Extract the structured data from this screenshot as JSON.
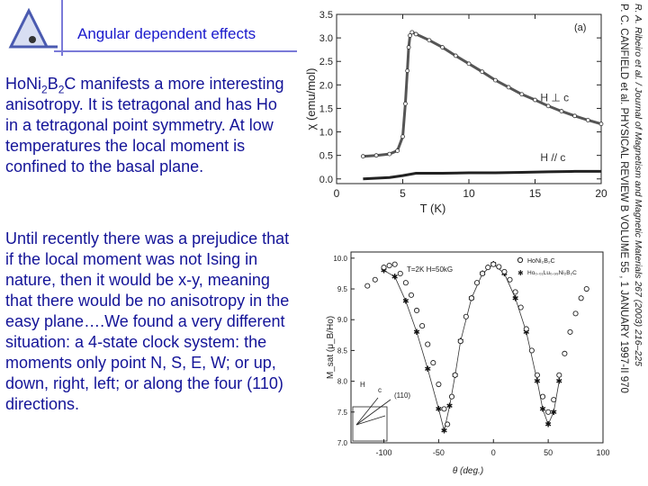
{
  "slide": {
    "title": "Angular dependent effects",
    "para1": {
      "formula": [
        "Ho",
        "Ni",
        "2",
        "B",
        "2",
        "C"
      ],
      "text": " manifests a more interesting anisotropy.  It is tetragonal and has Ho in a tetragonal point symmetry.  At low temperatures the local moment is confined to the basal plane."
    },
    "para2": "Until recently there was a prejudice that if the local moment was not Ising in nature, then it would be x-y, meaning that there would be no anisotropy in the easy plane….We found a very different situation:  a 4-state clock system:  the moments only point N, S, E, W; or up, down, right, left; or along the four (110) directions.",
    "citation1": "P. C. CANFIELD et al.   PHYSICAL REVIEW B VOLUME 55 , 1 JANUARY 1997-II    970",
    "citation2": "R. A. Ribeiro et al. / Journal of Magnetism and Magnetic Materials 267 (2003) 216–225",
    "colors": {
      "text": "#141498",
      "title": "#1a1acc",
      "rule": "#7a7ad8"
    }
  },
  "chart_data": [
    {
      "type": "line",
      "panel": "(a)",
      "xlabel": "T (K)",
      "ylabel": "χ (emu/mol)",
      "xlim": [
        0,
        20
      ],
      "ylim": [
        -0.1,
        3.5
      ],
      "xticks": [
        "0",
        "5",
        "10",
        "15",
        "20"
      ],
      "yticks": [
        "0.0",
        "0.5",
        "1.0",
        "1.5",
        "2.0",
        "2.5",
        "3.0",
        "3.5"
      ],
      "series": [
        {
          "name": "H ⊥ c",
          "x": [
            2.0,
            3.0,
            4.0,
            4.6,
            5.0,
            5.2,
            5.35,
            5.45,
            5.55,
            5.7,
            6.0,
            7.0,
            8.0,
            9.0,
            10.0,
            11.0,
            12.0,
            13.0,
            14.0,
            15.0,
            16.0,
            17.0,
            18.0,
            19.0,
            20.0
          ],
          "y": [
            0.48,
            0.5,
            0.53,
            0.6,
            0.9,
            1.6,
            2.3,
            2.8,
            3.05,
            3.12,
            3.08,
            2.95,
            2.8,
            2.62,
            2.45,
            2.28,
            2.1,
            1.95,
            1.8,
            1.68,
            1.55,
            1.44,
            1.34,
            1.25,
            1.17
          ]
        },
        {
          "name": "H // c",
          "x": [
            2.0,
            4.0,
            5.0,
            6.0,
            8.0,
            10.0,
            12.0,
            14.0,
            16.0,
            18.0,
            20.0
          ],
          "y": [
            0.0,
            0.03,
            0.07,
            0.12,
            0.12,
            0.13,
            0.13,
            0.14,
            0.15,
            0.16,
            0.16
          ]
        }
      ]
    },
    {
      "type": "scatter",
      "xlabel": "θ (deg.)",
      "ylabel": "M_sat (μ_B/Ho)",
      "annotation": "T=2K  H=50kG",
      "xlim": [
        -130,
        100
      ],
      "ylim": [
        7.0,
        10.1
      ],
      "xticks": [
        "-100",
        "-50",
        "0",
        "50",
        "100"
      ],
      "yticks": [
        "7.0",
        "7.5",
        "8.0",
        "8.5",
        "9.0",
        "9.5",
        "10.0"
      ],
      "inset": {
        "labels": [
          "H",
          "c",
          "(110)"
        ]
      },
      "series": [
        {
          "name": "HoNi₂B₂C",
          "x": [
            -115,
            -108,
            -100,
            -95,
            -90,
            -85,
            -80,
            -75,
            -70,
            -65,
            -60,
            -55,
            -50,
            -45,
            -42,
            -38,
            -35,
            -30,
            -25,
            -20,
            -15,
            -10,
            -5,
            0,
            5,
            10,
            15,
            20,
            25,
            30,
            35,
            40,
            45,
            50,
            55,
            60,
            65,
            70,
            75,
            80,
            85
          ],
          "y": [
            9.55,
            9.65,
            9.85,
            9.88,
            9.9,
            9.75,
            9.6,
            9.4,
            9.15,
            8.9,
            8.6,
            8.3,
            7.95,
            7.55,
            7.3,
            7.75,
            8.1,
            8.65,
            9.05,
            9.35,
            9.6,
            9.75,
            9.85,
            9.9,
            9.86,
            9.78,
            9.65,
            9.45,
            9.2,
            8.85,
            8.5,
            8.1,
            7.75,
            7.5,
            7.7,
            8.1,
            8.45,
            8.8,
            9.1,
            9.35,
            9.5
          ]
        },
        {
          "name": "Ho₀.₀₁Lu₀.₉₉Ni₂B₂C",
          "x": [
            -100,
            -90,
            -80,
            -70,
            -60,
            -50,
            -45,
            -40,
            -35,
            -30,
            -20,
            -10,
            0,
            10,
            20,
            30,
            40,
            45,
            50,
            55,
            60
          ],
          "y": [
            9.8,
            9.7,
            9.3,
            8.8,
            8.2,
            7.55,
            7.2,
            7.6,
            8.1,
            8.65,
            9.35,
            9.75,
            9.9,
            9.75,
            9.35,
            8.8,
            8.0,
            7.55,
            7.3,
            7.5,
            8.0
          ]
        }
      ]
    }
  ]
}
